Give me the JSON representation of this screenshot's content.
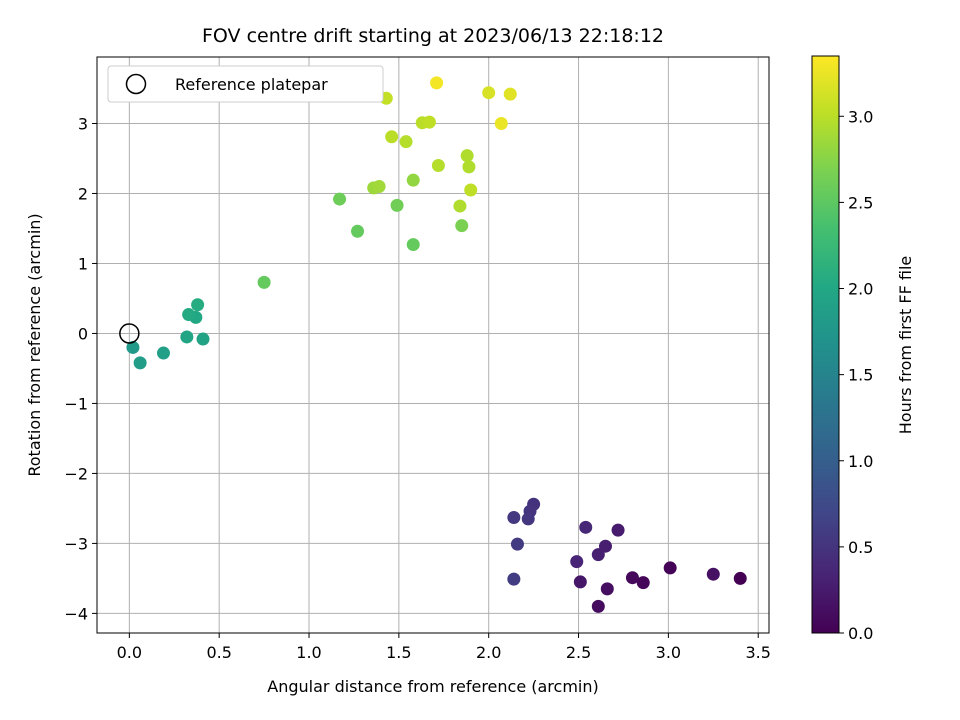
{
  "chart_data": {
    "type": "scatter",
    "title": "FOV centre drift starting at 2023/06/13 22:18:12",
    "xlabel": "Angular distance from reference (arcmin)",
    "ylabel": "Rotation from reference (arcmin)",
    "xlim": [
      -0.18,
      3.56
    ],
    "ylim": [
      -4.28,
      3.95
    ],
    "xticks": [
      0.0,
      0.5,
      1.0,
      1.5,
      2.0,
      2.5,
      3.0,
      3.5
    ],
    "xtick_labels": [
      "0.0",
      "0.5",
      "1.0",
      "1.5",
      "2.0",
      "2.5",
      "3.0",
      "3.5"
    ],
    "yticks": [
      -4,
      -3,
      -2,
      -1,
      0,
      1,
      2,
      3
    ],
    "ytick_labels": [
      "−4",
      "−3",
      "−2",
      "−1",
      "0",
      "1",
      "2",
      "3"
    ],
    "grid": true,
    "legend": {
      "position": "top-left",
      "entries": [
        "Reference platepar"
      ]
    },
    "reference_point": {
      "x": 0.0,
      "y": 0.0,
      "name": "Reference platepar"
    },
    "colorbar": {
      "label": "Hours from first FF file",
      "colormap": "viridis",
      "range": [
        0.0,
        3.35
      ],
      "ticks": [
        0.0,
        0.5,
        1.0,
        1.5,
        2.0,
        2.5,
        3.0
      ],
      "tick_labels": [
        "0.0",
        "0.5",
        "1.0",
        "1.5",
        "2.0",
        "2.5",
        "3.0"
      ]
    },
    "points": [
      {
        "x": 3.4,
        "y": -3.5,
        "c": 0.0
      },
      {
        "x": 3.01,
        "y": -3.35,
        "c": 0.02
      },
      {
        "x": 2.86,
        "y": -3.56,
        "c": 0.05
      },
      {
        "x": 2.8,
        "y": -3.49,
        "c": 0.07
      },
      {
        "x": 3.25,
        "y": -3.44,
        "c": 0.15
      },
      {
        "x": 2.61,
        "y": -3.9,
        "c": 0.1
      },
      {
        "x": 2.66,
        "y": -3.65,
        "c": 0.12
      },
      {
        "x": 2.51,
        "y": -3.55,
        "c": 0.2
      },
      {
        "x": 2.72,
        "y": -2.81,
        "c": 0.25
      },
      {
        "x": 2.65,
        "y": -3.04,
        "c": 0.28
      },
      {
        "x": 2.61,
        "y": -3.16,
        "c": 0.3
      },
      {
        "x": 2.49,
        "y": -3.26,
        "c": 0.35
      },
      {
        "x": 2.54,
        "y": -2.77,
        "c": 0.38
      },
      {
        "x": 2.25,
        "y": -2.44,
        "c": 0.48
      },
      {
        "x": 2.23,
        "y": -2.54,
        "c": 0.5
      },
      {
        "x": 2.22,
        "y": -2.65,
        "c": 0.52
      },
      {
        "x": 2.14,
        "y": -2.63,
        "c": 0.55
      },
      {
        "x": 2.16,
        "y": -3.01,
        "c": 0.58
      },
      {
        "x": 2.14,
        "y": -3.51,
        "c": 0.6
      },
      {
        "x": 0.02,
        "y": -0.2,
        "c": 1.8
      },
      {
        "x": 0.06,
        "y": -0.42,
        "c": 1.85
      },
      {
        "x": 0.19,
        "y": -0.28,
        "c": 1.9
      },
      {
        "x": 0.41,
        "y": -0.08,
        "c": 1.93
      },
      {
        "x": 0.32,
        "y": -0.05,
        "c": 1.97
      },
      {
        "x": 0.37,
        "y": 0.23,
        "c": 2.0
      },
      {
        "x": 0.33,
        "y": 0.27,
        "c": 2.03
      },
      {
        "x": 0.38,
        "y": 0.41,
        "c": 2.06
      },
      {
        "x": 0.75,
        "y": 0.73,
        "c": 2.55
      },
      {
        "x": 1.58,
        "y": 1.27,
        "c": 2.55
      },
      {
        "x": 1.27,
        "y": 1.46,
        "c": 2.55
      },
      {
        "x": 1.17,
        "y": 1.92,
        "c": 2.6
      },
      {
        "x": 1.49,
        "y": 1.83,
        "c": 2.62
      },
      {
        "x": 1.85,
        "y": 1.54,
        "c": 2.68
      },
      {
        "x": 1.58,
        "y": 2.19,
        "c": 2.8
      },
      {
        "x": 1.36,
        "y": 2.08,
        "c": 2.85
      },
      {
        "x": 1.39,
        "y": 2.1,
        "c": 2.87
      },
      {
        "x": 1.84,
        "y": 1.82,
        "c": 2.95
      },
      {
        "x": 1.89,
        "y": 2.38,
        "c": 2.95
      },
      {
        "x": 1.72,
        "y": 2.4,
        "c": 2.97
      },
      {
        "x": 1.9,
        "y": 2.05,
        "c": 3.02
      },
      {
        "x": 1.88,
        "y": 2.54,
        "c": 2.95
      },
      {
        "x": 1.54,
        "y": 2.74,
        "c": 2.97
      },
      {
        "x": 1.46,
        "y": 2.81,
        "c": 3.0
      },
      {
        "x": 1.63,
        "y": 3.01,
        "c": 3.0
      },
      {
        "x": 1.67,
        "y": 3.02,
        "c": 3.02
      },
      {
        "x": 1.43,
        "y": 3.36,
        "c": 3.05
      },
      {
        "x": 2.0,
        "y": 3.44,
        "c": 3.15
      },
      {
        "x": 2.12,
        "y": 3.42,
        "c": 3.2
      },
      {
        "x": 2.07,
        "y": 3.0,
        "c": 3.25
      },
      {
        "x": 1.71,
        "y": 3.58,
        "c": 3.3
      }
    ]
  }
}
